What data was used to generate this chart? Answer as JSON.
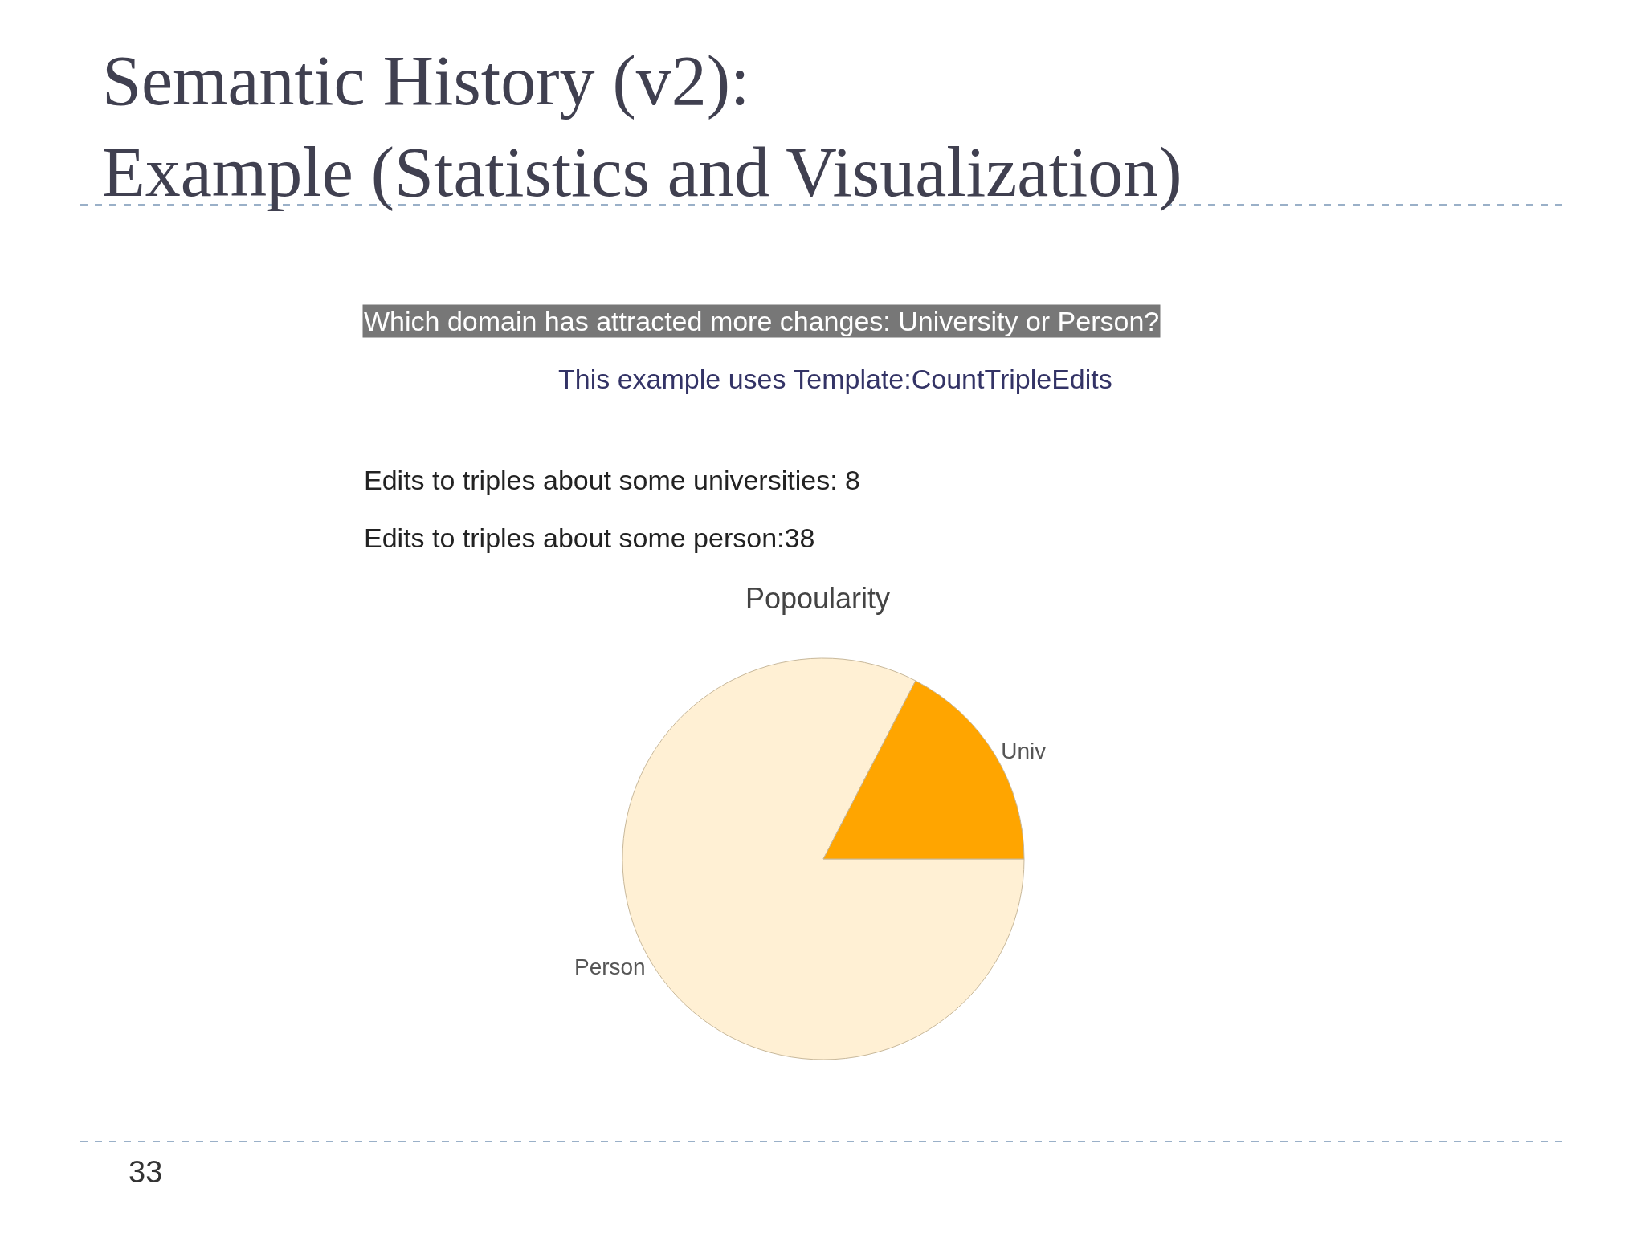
{
  "chart_data": {
    "type": "pie",
    "title": "Semantic History (v2):\nExample (Statistics and Visualization)",
    "subtitle": "Popoularity",
    "categories": [
      "Person",
      "Univ"
    ],
    "values": [
      82.6,
      17.4
    ],
    "colors": [
      "#fff0d4",
      "#ffa500"
    ],
    "legend": false,
    "annotations": [
      "Which domain has attracted more changes: University or Person?",
      "This example uses Template:CountTripleEdits",
      "Edits to triples about some universities: 8",
      "Edits to triples about some person:38",
      "33"
    ]
  }
}
